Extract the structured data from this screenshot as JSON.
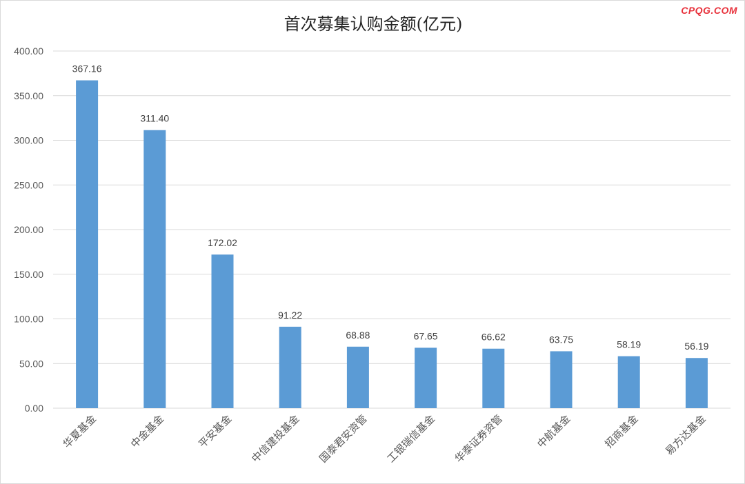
{
  "watermark": "CPQG.COM",
  "chart_data": {
    "type": "bar",
    "title": "首次募集认购金额(亿元)",
    "xlabel": "",
    "ylabel": "",
    "categories": [
      "华夏基金",
      "中金基金",
      "平安基金",
      "中信建投基金",
      "国泰君安资管",
      "工银瑞信基金",
      "华泰证券资管",
      "中航基金",
      "招商基金",
      "易方达基金"
    ],
    "values": [
      367.16,
      311.4,
      172.02,
      91.22,
      68.88,
      67.65,
      66.62,
      63.75,
      58.19,
      56.19
    ],
    "value_labels": [
      "367.16",
      "311.40",
      "172.02",
      "91.22",
      "68.88",
      "67.65",
      "66.62",
      "63.75",
      "58.19",
      "56.19"
    ],
    "ylim": [
      0,
      400
    ],
    "yticks": [
      "0.00",
      "50.00",
      "100.00",
      "150.00",
      "200.00",
      "250.00",
      "300.00",
      "350.00",
      "400.00"
    ],
    "ytick_values": [
      0,
      50,
      100,
      150,
      200,
      250,
      300,
      350,
      400
    ],
    "grid": true,
    "legend": "none",
    "bar_color": "#5b9bd5",
    "grid_color": "#d9d9d9"
  }
}
